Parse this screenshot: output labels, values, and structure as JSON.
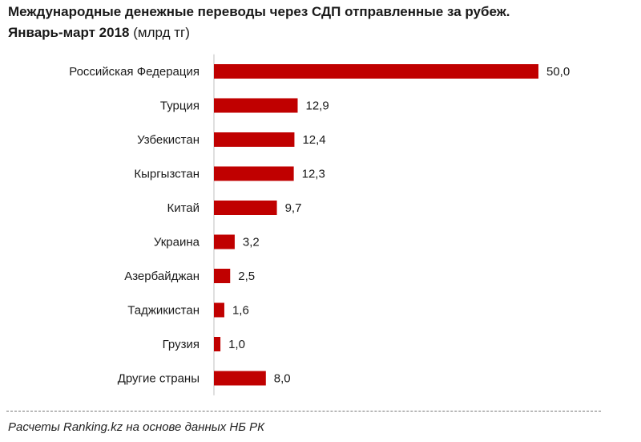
{
  "chart_data": {
    "type": "bar",
    "orientation": "horizontal",
    "title": "Международные денежные переводы через СДП отправленные за рубеж.",
    "subtitle": "Январь-март 2018",
    "units": "(млрд тг)",
    "categories": [
      "Российская Федерация",
      "Турция",
      "Узбекистан",
      "Кыргызстан",
      "Китай",
      "Украина",
      "Азербайджан",
      "Таджикистан",
      "Грузия",
      "Другие страны"
    ],
    "values": [
      50.0,
      12.9,
      12.4,
      12.3,
      9.7,
      3.2,
      2.5,
      1.6,
      1.0,
      8.0
    ],
    "value_labels": [
      "50,0",
      "12,9",
      "12,4",
      "12,3",
      "9,7",
      "3,2",
      "2,5",
      "1,6",
      "1,0",
      "8,0"
    ],
    "xlim": [
      0,
      50
    ],
    "bar_color": "#c00000",
    "grid": false,
    "legend": "none"
  },
  "footer": {
    "source": "Расчеты Ranking.kz на основе данных НБ РК"
  }
}
